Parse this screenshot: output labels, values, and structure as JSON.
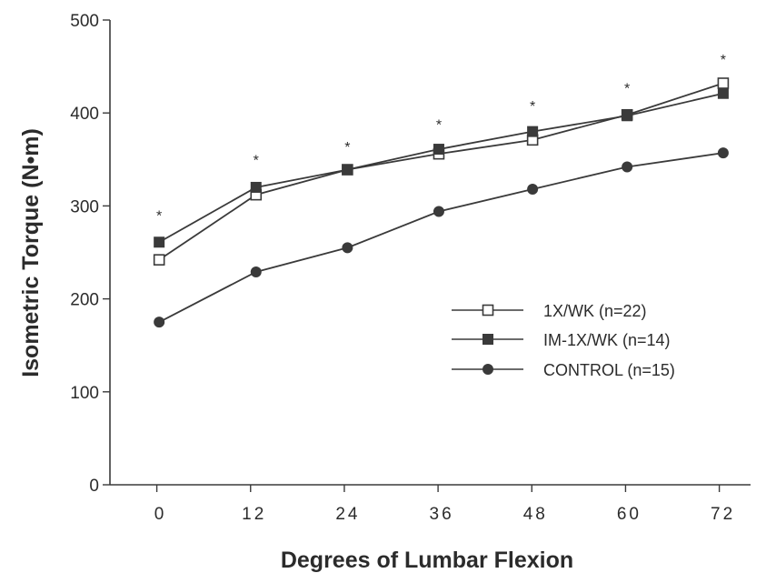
{
  "chart_data": {
    "type": "line",
    "title": "",
    "xlabel": "Degrees of Lumbar Flexion",
    "ylabel": "Isometric Torque (N•m)",
    "x": [
      0,
      12,
      24,
      36,
      48,
      60,
      72
    ],
    "xticks": [
      "0",
      "12",
      "24",
      "36",
      "48",
      "60",
      "72"
    ],
    "yticks": [
      "0",
      "100",
      "200",
      "300",
      "400",
      "500"
    ],
    "xlim": [
      -6,
      76
    ],
    "ylim": [
      0,
      500
    ],
    "grid": false,
    "legend_position": "center-right",
    "series": [
      {
        "name": "1X/WK (n=22)",
        "marker": "open-square",
        "values": [
          242,
          312,
          339,
          356,
          371,
          398,
          432
        ]
      },
      {
        "name": "IM-1X/WK (n=14)",
        "marker": "filled-square",
        "values": [
          261,
          320,
          339,
          361,
          380,
          397,
          421
        ]
      },
      {
        "name": "CONTROL (n=15)",
        "marker": "filled-circle",
        "values": [
          175,
          229,
          255,
          294,
          318,
          342,
          357
        ]
      }
    ],
    "annotations": [
      {
        "text": "*",
        "x": 0,
        "y": 292
      },
      {
        "text": "*",
        "x": 12,
        "y": 352
      },
      {
        "text": "*",
        "x": 24,
        "y": 366
      },
      {
        "text": "*",
        "x": 36,
        "y": 390
      },
      {
        "text": "*",
        "x": 48,
        "y": 410
      },
      {
        "text": "*",
        "x": 60,
        "y": 429
      },
      {
        "text": "*",
        "x": 72,
        "y": 460
      }
    ],
    "colors": {
      "line": "#3a3a3a",
      "text": "#2b2b2b"
    }
  }
}
